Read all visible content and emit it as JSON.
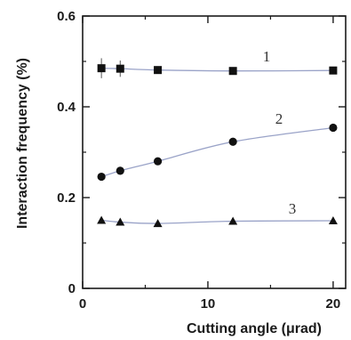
{
  "chart_data": {
    "type": "scatter",
    "xlabel": "Cutting angle (μrad)",
    "ylabel": "Interaction frequency  (%)",
    "xlim": [
      0,
      21
    ],
    "ylim": [
      0,
      0.6
    ],
    "x_ticks": [
      "0",
      "10",
      "20"
    ],
    "y_ticks": [
      "0",
      "0.2",
      "0.4",
      "0.6"
    ],
    "grid": false,
    "legend": "none",
    "series": [
      {
        "name": "1",
        "marker": "square",
        "x": [
          1.5,
          3,
          6,
          12,
          20
        ],
        "y": [
          0.485,
          0.484,
          0.481,
          0.479,
          0.48
        ],
        "error": [
          0.022,
          0.018,
          0,
          0,
          0
        ]
      },
      {
        "name": "2",
        "marker": "circle",
        "x": [
          1.5,
          3,
          6,
          12,
          20
        ],
        "y": [
          0.246,
          0.259,
          0.28,
          0.323,
          0.354
        ],
        "error": [
          0,
          0,
          0,
          0,
          0
        ]
      },
      {
        "name": "3",
        "marker": "triangle",
        "x": [
          1.5,
          3,
          6,
          12,
          20
        ],
        "y": [
          0.15,
          0.146,
          0.143,
          0.148,
          0.149
        ],
        "error": [
          0,
          0,
          0,
          0,
          0
        ]
      }
    ],
    "colors": {
      "axis": "#1a1a1a",
      "marker": "#111111",
      "fit_line": "#9aa3c8"
    }
  }
}
